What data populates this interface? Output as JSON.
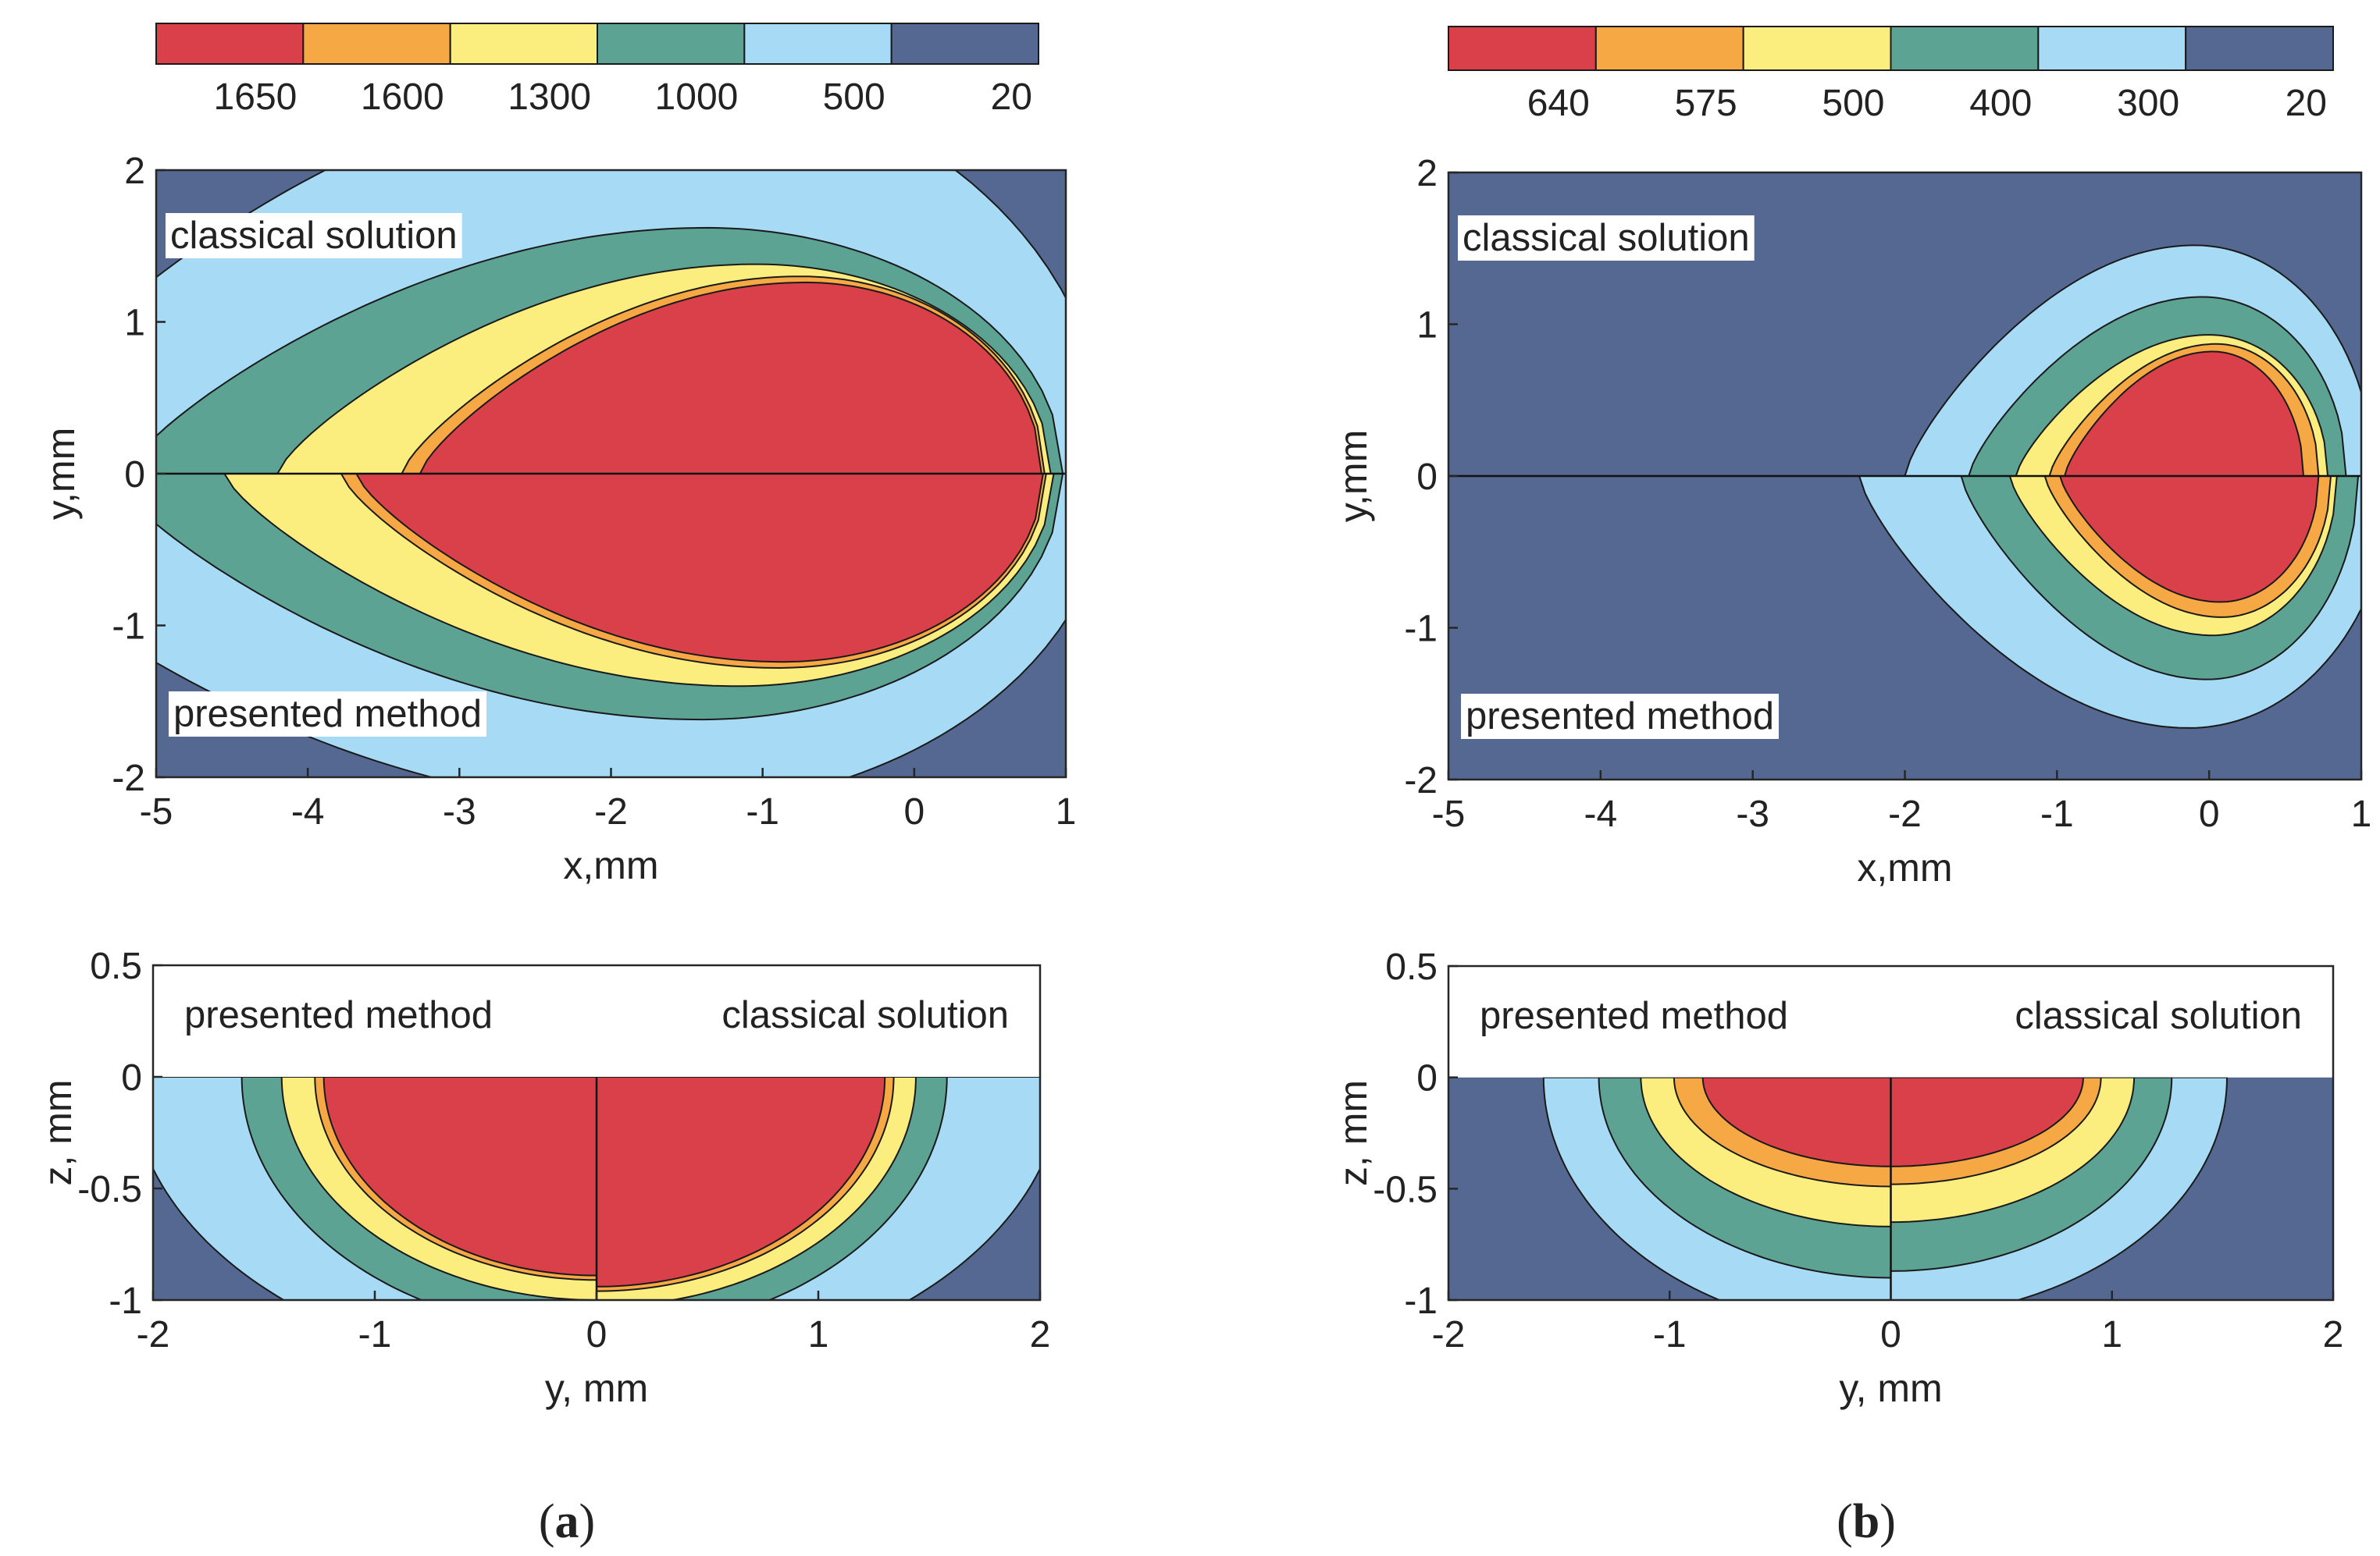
{
  "colors": {
    "red": "#d9404a",
    "orange": "#f6a845",
    "yellow": "#fcee7e",
    "green": "#5da394",
    "lightblue": "#a6daf5",
    "navy": "#556891",
    "outline": "#1a1a1a"
  },
  "panels": [
    {
      "id": "a",
      "caption_open": "(",
      "caption_letter": "a",
      "caption_close": ")",
      "colorbar": {
        "colors": [
          "#d9404a",
          "#f6a845",
          "#fcee7e",
          "#5da394",
          "#a6daf5",
          "#556891"
        ],
        "labels": [
          "1650",
          "1600",
          "1300",
          "1000",
          "500",
          "20"
        ]
      },
      "top": {
        "xlabel": "x,mm",
        "ylabel": "y,mm",
        "xlim": [
          -5,
          1
        ],
        "ylim": [
          -2,
          2
        ],
        "xticks": [
          "-5",
          "-4",
          "-3",
          "-2",
          "-1",
          "0",
          "1"
        ],
        "yticks": [
          "2",
          "1",
          "0",
          "-1",
          "-2"
        ],
        "label_upper": "classical solution",
        "label_lower": "presented method"
      },
      "bottom": {
        "xlabel": "y, mm",
        "ylabel": "z, mm",
        "xlim": [
          -2,
          2
        ],
        "ylim": [
          -1,
          0.5
        ],
        "xticks": [
          "-2",
          "-1",
          "0",
          "1",
          "2"
        ],
        "yticks": [
          "0.5",
          "0",
          "-0.5",
          "-1"
        ],
        "label_left": "presented method",
        "label_right": "classical solution"
      }
    },
    {
      "id": "b",
      "caption_open": "(",
      "caption_letter": "b",
      "caption_close": ")",
      "colorbar": {
        "colors": [
          "#d9404a",
          "#f6a845",
          "#fcee7e",
          "#5da394",
          "#a6daf5",
          "#556891"
        ],
        "labels": [
          "640",
          "575",
          "500",
          "400",
          "300",
          "20"
        ]
      },
      "top": {
        "xlabel": "x,mm",
        "ylabel": "y,mm",
        "xlim": [
          -5,
          1
        ],
        "ylim": [
          -2,
          2
        ],
        "xticks": [
          "-5",
          "-4",
          "-3",
          "-2",
          "-1",
          "0",
          "1"
        ],
        "yticks": [
          "2",
          "1",
          "0",
          "-1",
          "-2"
        ],
        "label_upper": "classical solution",
        "label_lower": "presented method"
      },
      "bottom": {
        "xlabel": "y, mm",
        "ylabel": "z, mm",
        "xlim": [
          -2,
          2
        ],
        "ylim": [
          -1,
          0.5
        ],
        "xticks": [
          "-2",
          "-1",
          "0",
          "1",
          "2"
        ],
        "yticks": [
          "0.5",
          "0",
          "-0.5",
          "-1"
        ],
        "label_left": "presented method",
        "label_right": "classical solution"
      }
    }
  ],
  "chart_data": [
    {
      "type": "heatmap",
      "panel": "a",
      "view": "top",
      "title": "",
      "xlabel": "x,mm",
      "ylabel": "y,mm",
      "xlim": [
        -5,
        1
      ],
      "ylim": [
        -2,
        2
      ],
      "levels": [
        20,
        500,
        1000,
        1300,
        1600,
        1650
      ],
      "legend": "colorbar top",
      "halves": {
        "upper": "classical solution",
        "lower": "presented method"
      },
      "contours_upper": [
        {
          "level": 500,
          "x_back": -6.2,
          "x_front": 1.3,
          "half_width": 2.6
        },
        {
          "level": 1000,
          "x_back": -5.2,
          "x_front": 0.98,
          "half_width": 1.62
        },
        {
          "level": 1300,
          "x_back": -4.2,
          "x_front": 0.9,
          "half_width": 1.38
        },
        {
          "level": 1600,
          "x_back": -3.38,
          "x_front": 0.86,
          "half_width": 1.3
        },
        {
          "level": 1650,
          "x_back": -3.26,
          "x_front": 0.84,
          "half_width": 1.26
        }
      ],
      "contours_lower": [
        {
          "level": 500,
          "x_back": -6.5,
          "x_front": 1.3,
          "half_width": 2.2
        },
        {
          "level": 1000,
          "x_back": -5.3,
          "x_front": 0.98,
          "half_width": 1.62
        },
        {
          "level": 1300,
          "x_back": -4.55,
          "x_front": 0.92,
          "half_width": 1.4
        },
        {
          "level": 1600,
          "x_back": -3.78,
          "x_front": 0.87,
          "half_width": 1.28
        },
        {
          "level": 1650,
          "x_back": -3.68,
          "x_front": 0.85,
          "half_width": 1.24
        }
      ]
    },
    {
      "type": "heatmap",
      "panel": "a",
      "view": "cross-section",
      "title": "",
      "xlabel": "y, mm",
      "ylabel": "z, mm",
      "xlim": [
        -2,
        2
      ],
      "ylim": [
        -1,
        0.5
      ],
      "levels": [
        20,
        500,
        1000,
        1300,
        1600,
        1650
      ],
      "halves": {
        "left": "presented method",
        "right": "classical solution"
      },
      "contours_left": [
        {
          "level": 500,
          "half_width": 2.1,
          "depth": 1.35
        },
        {
          "level": 1000,
          "half_width": 1.6,
          "depth": 1.15
        },
        {
          "level": 1300,
          "half_width": 1.42,
          "depth": 1.0
        },
        {
          "level": 1600,
          "half_width": 1.27,
          "depth": 0.91
        },
        {
          "level": 1650,
          "half_width": 1.23,
          "depth": 0.89
        }
      ],
      "contours_right": [
        {
          "level": 500,
          "half_width": 2.1,
          "depth": 1.35
        },
        {
          "level": 1000,
          "half_width": 1.58,
          "depth": 1.15
        },
        {
          "level": 1300,
          "half_width": 1.44,
          "depth": 1.03
        },
        {
          "level": 1600,
          "half_width": 1.34,
          "depth": 0.96
        },
        {
          "level": 1650,
          "half_width": 1.3,
          "depth": 0.94
        }
      ]
    },
    {
      "type": "heatmap",
      "panel": "b",
      "view": "top",
      "title": "",
      "xlabel": "x,mm",
      "ylabel": "y,mm",
      "xlim": [
        -5,
        1
      ],
      "ylim": [
        -2,
        2
      ],
      "levels": [
        20,
        300,
        400,
        500,
        575,
        640
      ],
      "legend": "colorbar top",
      "halves": {
        "upper": "classical solution",
        "lower": "presented method"
      },
      "contours_upper": [
        {
          "level": 300,
          "x_back": -2.0,
          "x_front": 1.08,
          "half_width": 1.52
        },
        {
          "level": 400,
          "x_back": -1.58,
          "x_front": 0.9,
          "half_width": 1.18
        },
        {
          "level": 500,
          "x_back": -1.27,
          "x_front": 0.78,
          "half_width": 0.93
        },
        {
          "level": 575,
          "x_back": -1.05,
          "x_front": 0.72,
          "half_width": 0.87
        },
        {
          "level": 640,
          "x_back": -0.95,
          "x_front": 0.62,
          "half_width": 0.82
        }
      ],
      "contours_lower": [
        {
          "level": 300,
          "x_back": -2.3,
          "x_front": 1.2,
          "half_width": 1.66
        },
        {
          "level": 400,
          "x_back": -1.63,
          "x_front": 0.98,
          "half_width": 1.34
        },
        {
          "level": 500,
          "x_back": -1.31,
          "x_front": 0.84,
          "half_width": 1.05
        },
        {
          "level": 575,
          "x_back": -1.08,
          "x_front": 0.8,
          "half_width": 0.93
        },
        {
          "level": 640,
          "x_back": -0.98,
          "x_front": 0.72,
          "half_width": 0.83
        }
      ]
    },
    {
      "type": "heatmap",
      "panel": "b",
      "view": "cross-section",
      "title": "",
      "xlabel": "y, mm",
      "ylabel": "z, mm",
      "xlim": [
        -2,
        2
      ],
      "ylim": [
        -1,
        0.5
      ],
      "levels": [
        20,
        300,
        400,
        500,
        575,
        640
      ],
      "halves": {
        "left": "presented method",
        "right": "classical solution"
      },
      "contours_left": [
        {
          "level": 300,
          "half_width": 1.57,
          "depth": 1.15
        },
        {
          "level": 400,
          "half_width": 1.32,
          "depth": 0.9
        },
        {
          "level": 500,
          "half_width": 1.13,
          "depth": 0.67
        },
        {
          "level": 575,
          "half_width": 0.98,
          "depth": 0.49
        },
        {
          "level": 640,
          "half_width": 0.85,
          "depth": 0.4
        }
      ],
      "contours_right": [
        {
          "level": 300,
          "half_width": 1.52,
          "depth": 1.08
        },
        {
          "level": 400,
          "half_width": 1.27,
          "depth": 0.87
        },
        {
          "level": 500,
          "half_width": 1.1,
          "depth": 0.65
        },
        {
          "level": 575,
          "half_width": 0.95,
          "depth": 0.48
        },
        {
          "level": 640,
          "half_width": 0.87,
          "depth": 0.4
        }
      ]
    }
  ]
}
